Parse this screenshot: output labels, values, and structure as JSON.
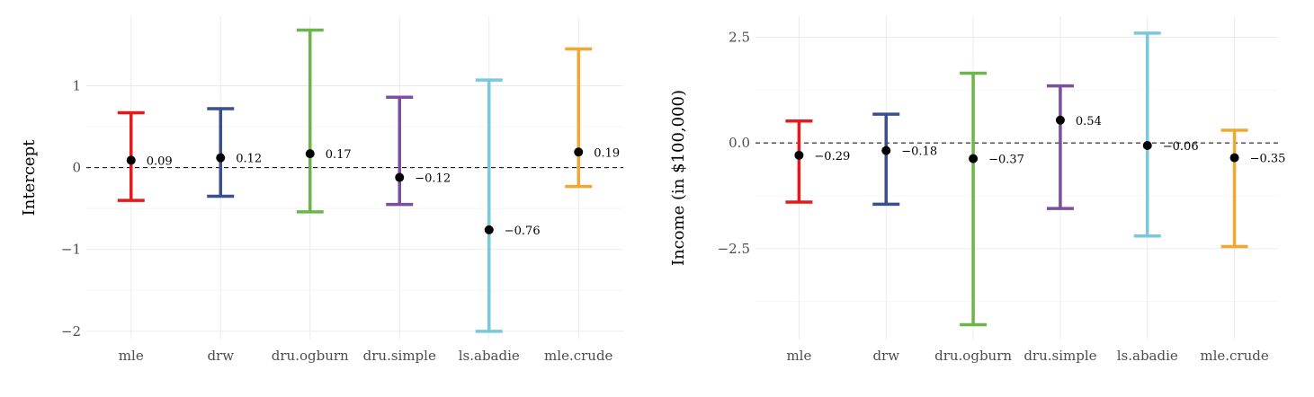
{
  "chart_data": [
    {
      "type": "errorbar",
      "title": "",
      "xlabel": "",
      "ylabel": "Intercept",
      "ylim": [
        -2.1,
        1.85
      ],
      "yticks": [
        1,
        0,
        -1,
        -2
      ],
      "yticklabels": [
        "1",
        "0",
        "−1",
        "−2"
      ],
      "grid": true,
      "reference_line": 0,
      "categories": [
        "mle",
        "drw",
        "dru.ogburn",
        "dru.simple",
        "ls.abadie",
        "mle.crude"
      ],
      "estimates": [
        0.09,
        0.12,
        0.17,
        -0.12,
        -0.76,
        0.19
      ],
      "labels": [
        "0.09",
        "0.12",
        "0.17",
        "−0.12",
        "−0.76",
        "0.19"
      ],
      "lower": [
        -0.4,
        -0.35,
        -0.54,
        -0.45,
        -2.0,
        -0.23
      ],
      "upper": [
        0.67,
        0.72,
        1.68,
        0.86,
        1.07,
        1.45
      ]
    },
    {
      "type": "errorbar",
      "title": "",
      "xlabel": "",
      "ylabel": "Income (in $100,000)",
      "ylim": [
        -4.65,
        3.0
      ],
      "yticks": [
        2.5,
        0,
        -2.5
      ],
      "yticklabels": [
        "2.5",
        "0.0",
        "−2.5"
      ],
      "grid": true,
      "reference_line": 0,
      "categories": [
        "mle",
        "drw",
        "dru.ogburn",
        "dru.simple",
        "ls.abadie",
        "mle.crude"
      ],
      "estimates": [
        -0.29,
        -0.18,
        -0.37,
        0.54,
        -0.06,
        -0.35
      ],
      "labels": [
        "−0.29",
        "−0.18",
        "−0.37",
        "0.54",
        "−0.06",
        "−0.35"
      ],
      "lower": [
        -1.4,
        -1.45,
        -4.3,
        -1.55,
        -2.2,
        -2.45
      ],
      "upper": [
        0.52,
        0.68,
        1.65,
        1.35,
        2.6,
        0.3
      ]
    }
  ],
  "colors": [
    "#e41a1c",
    "#3a4f8f",
    "#6ab64a",
    "#7b4f9d",
    "#79c8dd",
    "#f0a830"
  ]
}
